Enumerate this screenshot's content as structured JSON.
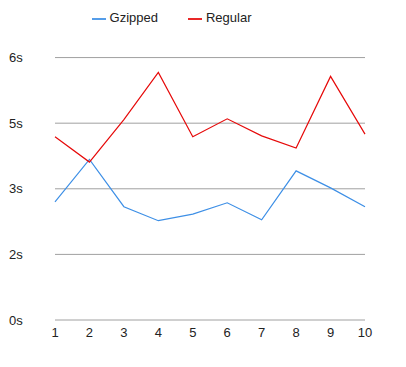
{
  "chart_data": {
    "type": "line",
    "categories": [
      "1",
      "2",
      "3",
      "4",
      "5",
      "6",
      "7",
      "8",
      "9",
      "10"
    ],
    "series": [
      {
        "name": "Gzipped",
        "color": "#3d8fe6",
        "values": [
          2.7,
          3.67,
          2.59,
          2.27,
          2.42,
          2.68,
          2.29,
          3.41,
          3.02,
          2.59
        ]
      },
      {
        "name": "Regular",
        "color": "#e60a0a",
        "values": [
          4.19,
          3.61,
          4.58,
          5.66,
          4.19,
          4.6,
          4.21,
          3.93,
          5.57,
          4.25
        ]
      }
    ],
    "ylim": [
      0,
      6
    ],
    "yticks": [
      {
        "value": 0,
        "label": "0s"
      },
      {
        "value": 1.5,
        "label": "2s"
      },
      {
        "value": 3,
        "label": "3s"
      },
      {
        "value": 4.5,
        "label": "5s"
      },
      {
        "value": 6,
        "label": "6s"
      }
    ],
    "grid": true,
    "legend": "top"
  }
}
